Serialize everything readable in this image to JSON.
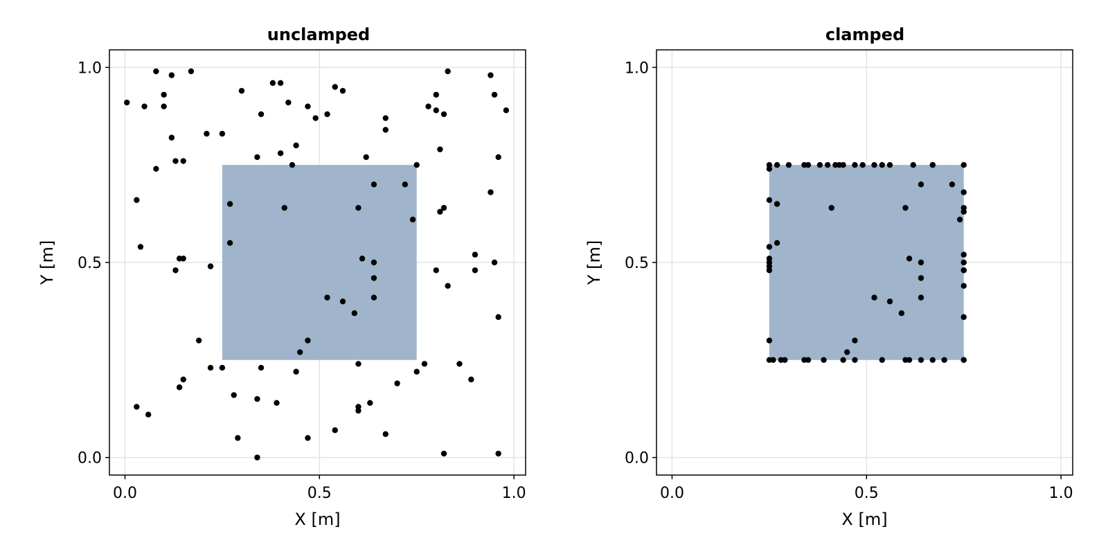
{
  "chart_data": [
    {
      "type": "scatter",
      "title": "unclamped",
      "xlabel": "X [m]",
      "ylabel": "Y [m]",
      "xlim": [
        -0.04,
        1.03
      ],
      "ylim": [
        -0.045,
        1.045
      ],
      "xticks": [
        "0.0",
        "0.5",
        "1.0"
      ],
      "yticks": [
        "0.0",
        "0.5",
        "1.0"
      ],
      "grid": true,
      "region": {
        "x": [
          0.25,
          0.75
        ],
        "y": [
          0.25,
          0.75
        ],
        "color": "#a0b4cb"
      },
      "point_color": "#000000",
      "points": [
        [
          0.08,
          0.99
        ],
        [
          0.12,
          0.98
        ],
        [
          0.17,
          0.99
        ],
        [
          0.005,
          0.91
        ],
        [
          0.05,
          0.9
        ],
        [
          0.1,
          0.93
        ],
        [
          0.1,
          0.9
        ],
        [
          0.12,
          0.82
        ],
        [
          0.21,
          0.83
        ],
        [
          0.25,
          0.83
        ],
        [
          0.3,
          0.94
        ],
        [
          0.38,
          0.96
        ],
        [
          0.4,
          0.96
        ],
        [
          0.35,
          0.88
        ],
        [
          0.42,
          0.91
        ],
        [
          0.47,
          0.9
        ],
        [
          0.49,
          0.87
        ],
        [
          0.52,
          0.88
        ],
        [
          0.54,
          0.95
        ],
        [
          0.56,
          0.94
        ],
        [
          0.08,
          0.74
        ],
        [
          0.13,
          0.76
        ],
        [
          0.15,
          0.76
        ],
        [
          0.34,
          0.77
        ],
        [
          0.4,
          0.78
        ],
        [
          0.44,
          0.8
        ],
        [
          0.43,
          0.75
        ],
        [
          0.62,
          0.77
        ],
        [
          0.67,
          0.87
        ],
        [
          0.67,
          0.84
        ],
        [
          0.78,
          0.9
        ],
        [
          0.8,
          0.93
        ],
        [
          0.8,
          0.89
        ],
        [
          0.82,
          0.88
        ],
        [
          0.83,
          0.99
        ],
        [
          0.94,
          0.98
        ],
        [
          0.95,
          0.93
        ],
        [
          0.98,
          0.89
        ],
        [
          0.81,
          0.79
        ],
        [
          0.96,
          0.77
        ],
        [
          0.03,
          0.66
        ],
        [
          0.27,
          0.65
        ],
        [
          0.41,
          0.64
        ],
        [
          0.6,
          0.64
        ],
        [
          0.64,
          0.7
        ],
        [
          0.72,
          0.7
        ],
        [
          0.74,
          0.61
        ],
        [
          0.75,
          0.75
        ],
        [
          0.82,
          0.64
        ],
        [
          0.81,
          0.63
        ],
        [
          0.94,
          0.68
        ],
        [
          0.04,
          0.54
        ],
        [
          0.27,
          0.55
        ],
        [
          0.14,
          0.51
        ],
        [
          0.15,
          0.51
        ],
        [
          0.13,
          0.48
        ],
        [
          0.22,
          0.49
        ],
        [
          0.61,
          0.51
        ],
        [
          0.64,
          0.5
        ],
        [
          0.64,
          0.46
        ],
        [
          0.64,
          0.41
        ],
        [
          0.52,
          0.41
        ],
        [
          0.56,
          0.4
        ],
        [
          0.59,
          0.37
        ],
        [
          0.8,
          0.48
        ],
        [
          0.83,
          0.44
        ],
        [
          0.9,
          0.52
        ],
        [
          0.9,
          0.48
        ],
        [
          0.95,
          0.5
        ],
        [
          0.96,
          0.36
        ],
        [
          0.19,
          0.3
        ],
        [
          0.22,
          0.23
        ],
        [
          0.25,
          0.23
        ],
        [
          0.35,
          0.23
        ],
        [
          0.45,
          0.27
        ],
        [
          0.47,
          0.3
        ],
        [
          0.44,
          0.22
        ],
        [
          0.6,
          0.24
        ],
        [
          0.75,
          0.22
        ],
        [
          0.77,
          0.24
        ],
        [
          0.7,
          0.19
        ],
        [
          0.86,
          0.24
        ],
        [
          0.89,
          0.2
        ],
        [
          0.15,
          0.2
        ],
        [
          0.14,
          0.18
        ],
        [
          0.03,
          0.13
        ],
        [
          0.06,
          0.11
        ],
        [
          0.28,
          0.16
        ],
        [
          0.34,
          0.15
        ],
        [
          0.39,
          0.14
        ],
        [
          0.6,
          0.13
        ],
        [
          0.6,
          0.12
        ],
        [
          0.63,
          0.14
        ],
        [
          0.29,
          0.05
        ],
        [
          0.47,
          0.05
        ],
        [
          0.54,
          0.07
        ],
        [
          0.67,
          0.06
        ],
        [
          0.34,
          0.0
        ],
        [
          0.82,
          0.01
        ],
        [
          0.96,
          0.01
        ]
      ]
    },
    {
      "type": "scatter",
      "title": "clamped",
      "xlabel": "X [m]",
      "ylabel": "Y [m]",
      "xlim": [
        -0.04,
        1.03
      ],
      "ylim": [
        -0.045,
        1.045
      ],
      "xticks": [
        "0.0",
        "0.5",
        "1.0"
      ],
      "yticks": [
        "0.0",
        "0.5",
        "1.0"
      ],
      "grid": true,
      "region": {
        "x": [
          0.25,
          0.75
        ],
        "y": [
          0.25,
          0.75
        ],
        "color": "#a0b4cb"
      },
      "point_color": "#000000",
      "points": [
        [
          0.25,
          0.75
        ],
        [
          0.25,
          0.74
        ],
        [
          0.27,
          0.75
        ],
        [
          0.3,
          0.75
        ],
        [
          0.34,
          0.75
        ],
        [
          0.35,
          0.75
        ],
        [
          0.38,
          0.75
        ],
        [
          0.4,
          0.75
        ],
        [
          0.42,
          0.75
        ],
        [
          0.43,
          0.75
        ],
        [
          0.44,
          0.75
        ],
        [
          0.47,
          0.75
        ],
        [
          0.49,
          0.75
        ],
        [
          0.52,
          0.75
        ],
        [
          0.54,
          0.75
        ],
        [
          0.56,
          0.75
        ],
        [
          0.62,
          0.75
        ],
        [
          0.67,
          0.75
        ],
        [
          0.67,
          0.75
        ],
        [
          0.75,
          0.75
        ],
        [
          0.25,
          0.66
        ],
        [
          0.27,
          0.65
        ],
        [
          0.41,
          0.64
        ],
        [
          0.6,
          0.64
        ],
        [
          0.64,
          0.7
        ],
        [
          0.72,
          0.7
        ],
        [
          0.74,
          0.61
        ],
        [
          0.75,
          0.68
        ],
        [
          0.75,
          0.64
        ],
        [
          0.75,
          0.63
        ],
        [
          0.25,
          0.54
        ],
        [
          0.27,
          0.55
        ],
        [
          0.25,
          0.51
        ],
        [
          0.25,
          0.5
        ],
        [
          0.25,
          0.48
        ],
        [
          0.25,
          0.49
        ],
        [
          0.61,
          0.51
        ],
        [
          0.64,
          0.5
        ],
        [
          0.64,
          0.46
        ],
        [
          0.64,
          0.41
        ],
        [
          0.52,
          0.41
        ],
        [
          0.56,
          0.4
        ],
        [
          0.59,
          0.37
        ],
        [
          0.75,
          0.52
        ],
        [
          0.75,
          0.5
        ],
        [
          0.75,
          0.48
        ],
        [
          0.75,
          0.48
        ],
        [
          0.75,
          0.44
        ],
        [
          0.75,
          0.36
        ],
        [
          0.25,
          0.3
        ],
        [
          0.47,
          0.3
        ],
        [
          0.45,
          0.27
        ],
        [
          0.25,
          0.25
        ],
        [
          0.26,
          0.25
        ],
        [
          0.28,
          0.25
        ],
        [
          0.29,
          0.25
        ],
        [
          0.34,
          0.25
        ],
        [
          0.35,
          0.25
        ],
        [
          0.39,
          0.25
        ],
        [
          0.44,
          0.25
        ],
        [
          0.47,
          0.25
        ],
        [
          0.54,
          0.25
        ],
        [
          0.6,
          0.25
        ],
        [
          0.61,
          0.25
        ],
        [
          0.64,
          0.25
        ],
        [
          0.67,
          0.25
        ],
        [
          0.7,
          0.25
        ],
        [
          0.75,
          0.25
        ],
        [
          0.75,
          0.25
        ]
      ]
    }
  ]
}
